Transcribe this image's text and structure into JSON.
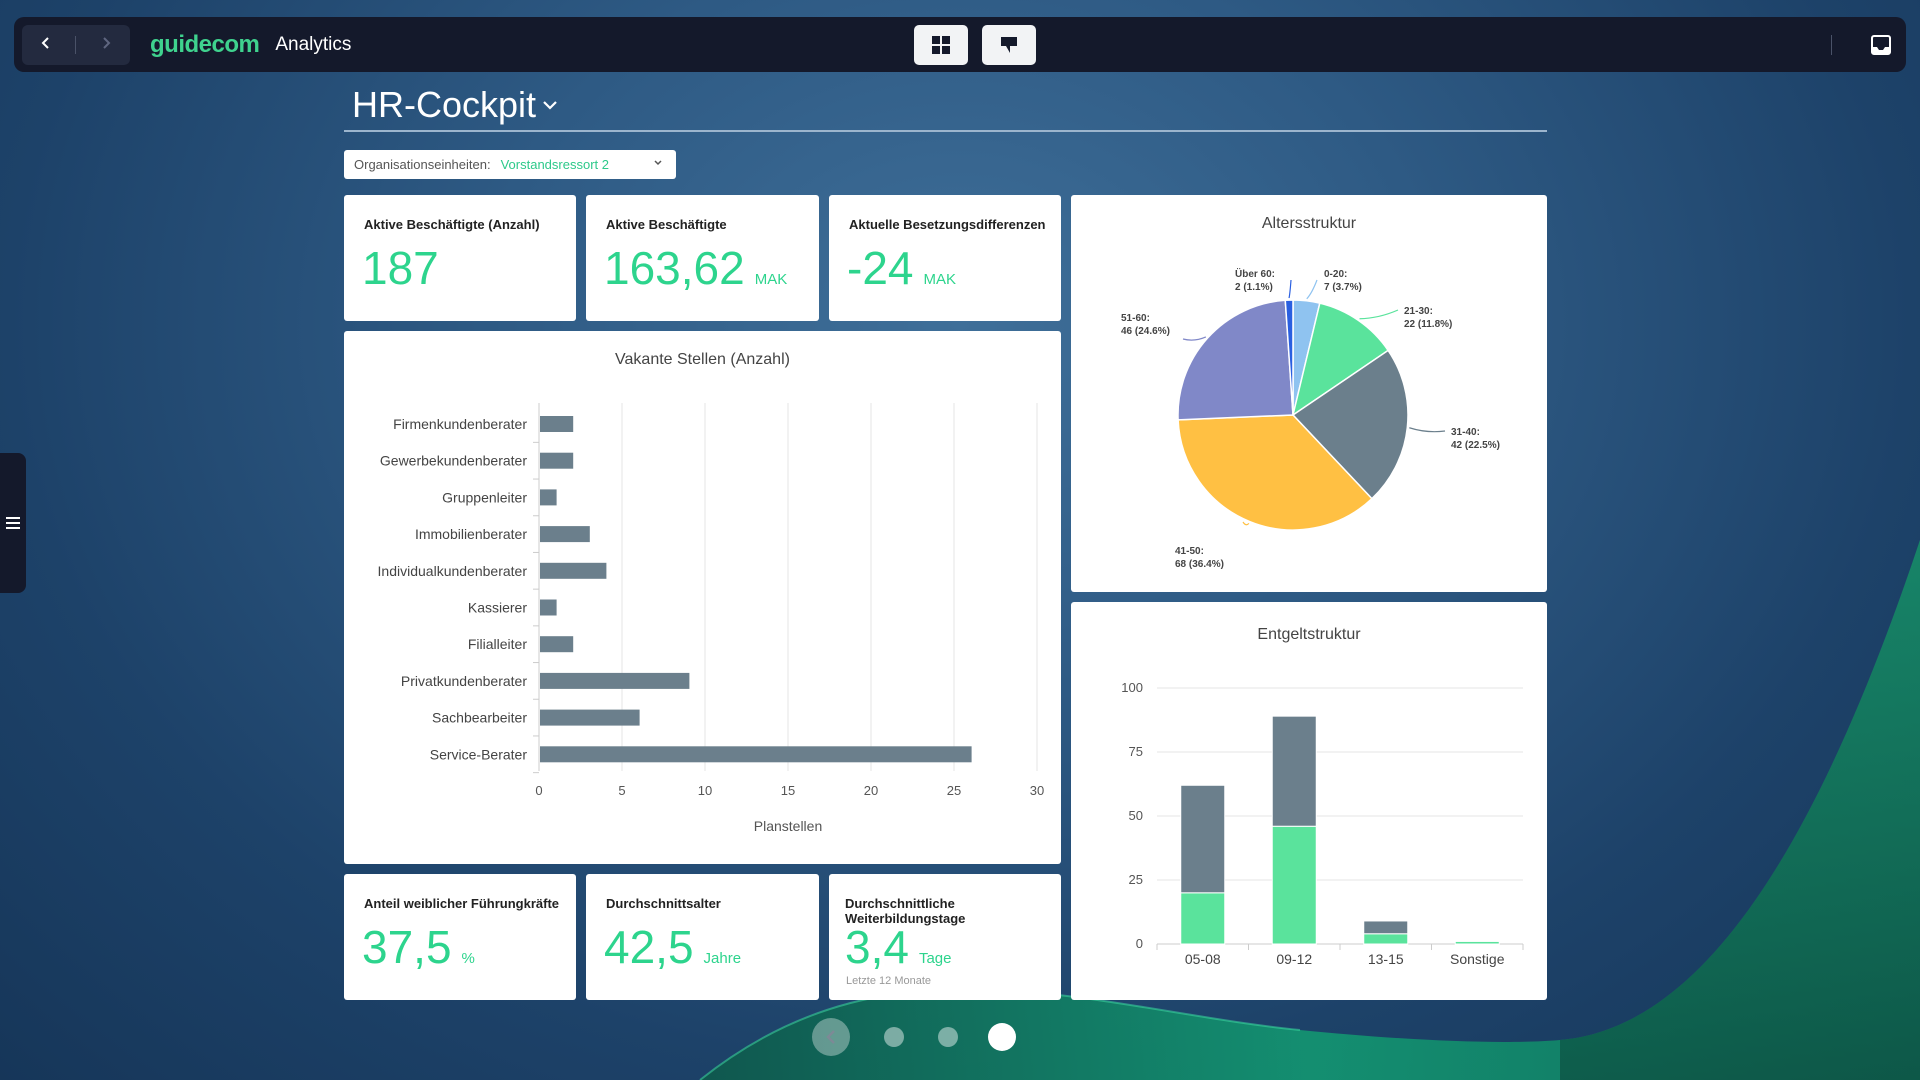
{
  "topbar": {
    "brand": "guidecom",
    "app_title": "Analytics",
    "back_icon": "chevron-left-icon",
    "forward_icon": "chevron-right-icon"
  },
  "page": {
    "title": "HR-Cockpit"
  },
  "filter": {
    "label": "Organisationseinheiten:",
    "value": "Vorstandsressort 2"
  },
  "kpis": [
    {
      "label": "Aktive Beschäftigte (Anzahl)",
      "value": "187",
      "unit": ""
    },
    {
      "label": "Aktive Beschäftigte",
      "value": "163,62",
      "unit": "MAK"
    },
    {
      "label": "Aktuelle Besetzungsdifferenzen",
      "value": "-24",
      "unit": "MAK"
    },
    {
      "label": "Anteil weiblicher Führungkräfte",
      "value": "37,5",
      "unit": "%"
    },
    {
      "label": "Durchschnittsalter",
      "value": "42,5",
      "unit": "Jahre"
    },
    {
      "label": "Durchschnittliche Weiterbildungstage",
      "value": "3,4",
      "unit": "Tage",
      "sub": "Letzte 12 Monate"
    }
  ],
  "chart_data": [
    {
      "type": "bar",
      "orientation": "horizontal",
      "title": "Vakante Stellen (Anzahl)",
      "xlabel": "Planstellen",
      "ylabel": "",
      "xlim": [
        0,
        30
      ],
      "xticks": [
        "0",
        "5",
        "10",
        "15",
        "20",
        "25",
        "30"
      ],
      "grid": true,
      "color": "#6b7f8c",
      "categories": [
        "Firmenkundenberater",
        "Gewerbekundenberater",
        "Gruppenleiter",
        "Immobilienberater",
        "Individualkundenberater",
        "Kassierer",
        "Filialleiter",
        "Privatkundenberater",
        "Sachbearbeiter",
        "Service-Berater"
      ],
      "values": [
        2,
        2,
        1,
        3,
        4,
        1,
        2,
        9,
        6,
        26
      ]
    },
    {
      "type": "pie",
      "title": "Altersstruktur",
      "slices": [
        {
          "label": "0-20:",
          "detail": "7 (3.7%)",
          "value": 7,
          "color": "#8fc3f0"
        },
        {
          "label": "21-30:",
          "detail": "22 (11.8%)",
          "value": 22,
          "color": "#5ae39c"
        },
        {
          "label": "31-40:",
          "detail": "42 (22.5%)",
          "value": 42,
          "color": "#6b7f8c"
        },
        {
          "label": "41-50:",
          "detail": "68 (36.4%)",
          "value": 68,
          "color": "#ffc043"
        },
        {
          "label": "51-60:",
          "detail": "46 (24.6%)",
          "value": 46,
          "color": "#8088c8"
        },
        {
          "label": "Über 60:",
          "detail": "2 (1.1%)",
          "value": 2,
          "color": "#2a5fe0"
        }
      ]
    },
    {
      "type": "bar",
      "stacked": true,
      "title": "Entgeltstruktur",
      "xlabel": "",
      "ylabel": "",
      "ylim": [
        0,
        100
      ],
      "yticks": [
        "0",
        "25",
        "50",
        "75",
        "100"
      ],
      "grid": true,
      "categories": [
        "05-08",
        "09-12",
        "13-15",
        "Sonstige"
      ],
      "series": [
        {
          "values": [
            20,
            46,
            4,
            1
          ],
          "color": "#5ae39c"
        },
        {
          "values": [
            42,
            43,
            5,
            0
          ],
          "color": "#6b7f8c"
        }
      ]
    }
  ],
  "pager": {
    "pages": 3,
    "active": 3
  }
}
